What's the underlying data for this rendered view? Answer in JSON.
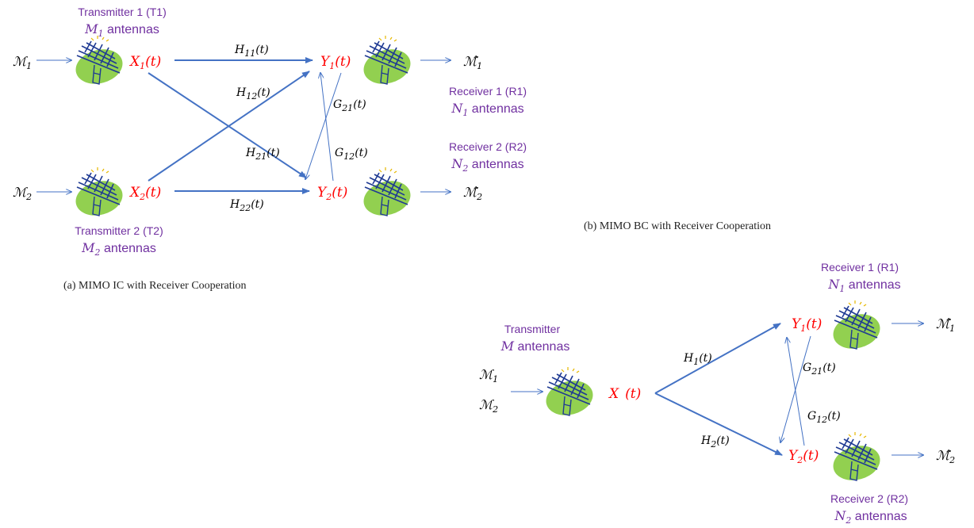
{
  "colors": {
    "arrow": "#4472c4",
    "label": "#7030a0",
    "signal": "#ff0000",
    "blob": "#92d050",
    "dish": "#1f3a93"
  },
  "ic": {
    "caption": "(a) MIMO IC with Receiver Cooperation",
    "t1": {
      "name": "Transmitter 1  (T1)",
      "ant_var": "M",
      "ant_sub": "1",
      "ant_word": "antennas"
    },
    "t2": {
      "name": "Transmitter 2  (T2)",
      "ant_var": "M",
      "ant_sub": "2",
      "ant_word": "antennas"
    },
    "r1": {
      "name": "Receiver 1  (R1)",
      "ant_var": "N",
      "ant_sub": "1",
      "ant_word": "antennas"
    },
    "r2": {
      "name": "Receiver 2  (R2)",
      "ant_var": "N",
      "ant_sub": "2",
      "ant_word": "antennas"
    },
    "msg1": {
      "sym": "ℳ",
      "sub": "1"
    },
    "msg2": {
      "sym": "ℳ",
      "sub": "2"
    },
    "est1": {
      "sym": "ℳ̂",
      "sub": "1"
    },
    "est2": {
      "sym": "ℳ̂",
      "sub": "2"
    },
    "x1": {
      "var": "X",
      "sub": "1",
      "arg": "(t)"
    },
    "x2": {
      "var": "X",
      "sub": "2",
      "arg": "(t)"
    },
    "y1": {
      "var": "Y",
      "sub": "1",
      "arg": "(t)"
    },
    "y2": {
      "var": "Y",
      "sub": "2",
      "arg": "(t)"
    },
    "h11": {
      "var": "H",
      "sub": "11",
      "arg": "(t)"
    },
    "h12": {
      "var": "H",
      "sub": "12",
      "arg": "(t)"
    },
    "h21": {
      "var": "H",
      "sub": "21",
      "arg": "(t)"
    },
    "h22": {
      "var": "H",
      "sub": "22",
      "arg": "(t)"
    },
    "g21": {
      "var": "G",
      "sub": "21",
      "arg": "(t)"
    },
    "g12": {
      "var": "G",
      "sub": "12",
      "arg": "(t)"
    }
  },
  "bc": {
    "caption": "(b) MIMO BC with Receiver Cooperation",
    "tx": {
      "name": "Transmitter",
      "ant_var": "M",
      "ant_word": "antennas"
    },
    "r1": {
      "name": "Receiver 1  (R1)",
      "ant_var": "N",
      "ant_sub": "1",
      "ant_word": "antennas"
    },
    "r2": {
      "name": "Receiver 2  (R2)",
      "ant_var": "N",
      "ant_sub": "2",
      "ant_word": "antennas"
    },
    "msg1": {
      "sym": "ℳ",
      "sub": "1"
    },
    "msg2": {
      "sym": "ℳ",
      "sub": "2"
    },
    "est1": {
      "sym": "ℳ̂",
      "sub": "1"
    },
    "est2": {
      "sym": "ℳ̂",
      "sub": "2"
    },
    "x": {
      "var": "X",
      "arg": "(t)"
    },
    "y1": {
      "var": "Y",
      "sub": "1",
      "arg": "(t)"
    },
    "y2": {
      "var": "Y",
      "sub": "2",
      "arg": "(t)"
    },
    "h1": {
      "var": "H",
      "sub": "1",
      "arg": "(t)"
    },
    "h2": {
      "var": "H",
      "sub": "2",
      "arg": "(t)"
    },
    "g21": {
      "var": "G",
      "sub": "21",
      "arg": "(t)"
    },
    "g12": {
      "var": "G",
      "sub": "12",
      "arg": "(t)"
    }
  }
}
